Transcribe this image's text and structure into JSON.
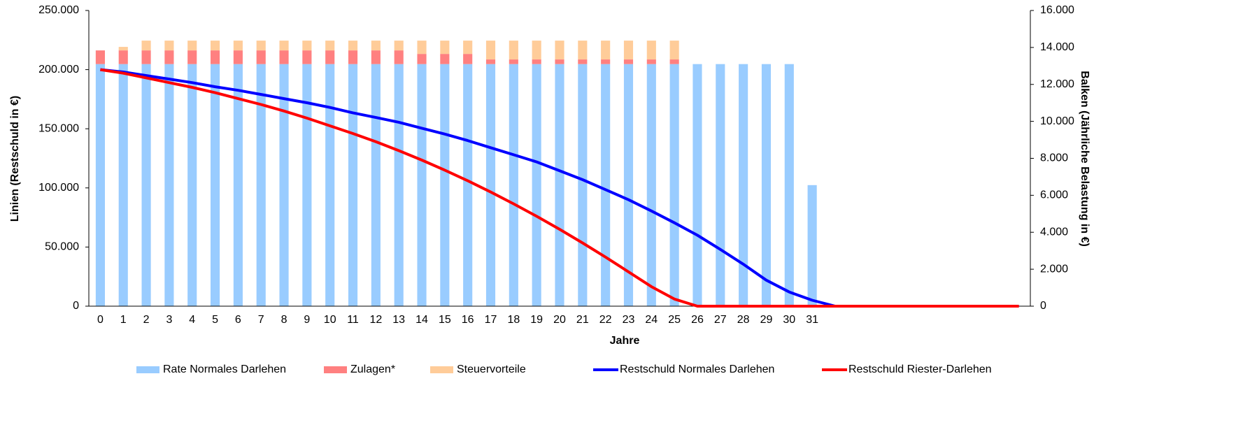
{
  "chart_data": {
    "type": "combo",
    "xlabel": "Jahre",
    "ylabel": "Linien  (Restschuld in €)",
    "y2label": "Balken  (Jährliche Belastung in €)",
    "categories": [
      "0",
      "1",
      "2",
      "3",
      "4",
      "5",
      "6",
      "7",
      "8",
      "9",
      "10",
      "11",
      "12",
      "13",
      "14",
      "15",
      "16",
      "17",
      "18",
      "19",
      "20",
      "21",
      "22",
      "23",
      "24",
      "25",
      "26",
      "27",
      "28",
      "29",
      "30",
      "31",
      null,
      null,
      null,
      null,
      null,
      null,
      null,
      null,
      null
    ],
    "ylim": [
      0,
      250000
    ],
    "yticks": [
      0,
      {
        "value": 50000,
        "label": "50.000"
      },
      {
        "value": 100000,
        "label": "100.000"
      },
      {
        "value": 150000,
        "label": "150.000"
      },
      {
        "value": 200000,
        "label": "200.000"
      },
      {
        "value": 250000,
        "label": "250.000"
      }
    ],
    "y2lim": [
      0,
      16000
    ],
    "y2ticks": [
      0,
      {
        "value": 2000,
        "label": "2.000"
      },
      {
        "value": 4000,
        "label": "4.000"
      },
      {
        "value": 6000,
        "label": "6.000"
      },
      {
        "value": 8000,
        "label": "8.000"
      },
      {
        "value": 10000,
        "label": "10.000"
      },
      {
        "value": 12000,
        "label": "12.000"
      },
      {
        "value": 14000,
        "label": "14.000"
      },
      {
        "value": 16000,
        "label": "16.000"
      }
    ],
    "legend": "bottom",
    "series": [
      {
        "name": "Rate Normales Darlehen",
        "type": "bar",
        "axis": "y2",
        "color": "#99ccff",
        "values": [
          13100,
          13100,
          13100,
          13100,
          13100,
          13100,
          13100,
          13100,
          13100,
          13100,
          13100,
          13100,
          13100,
          13100,
          13100,
          13100,
          13100,
          13100,
          13100,
          13100,
          13100,
          13100,
          13100,
          13100,
          13100,
          13100,
          13100,
          13100,
          13100,
          13100,
          13100,
          6550,
          null,
          null,
          null,
          null,
          null,
          null,
          null,
          null,
          null
        ]
      },
      {
        "name": "Zulagen*",
        "type": "bar",
        "axis": "y2",
        "color": "#ff8080",
        "values": [
          740,
          740,
          740,
          740,
          740,
          740,
          740,
          740,
          740,
          740,
          740,
          740,
          740,
          740,
          550,
          550,
          550,
          250,
          250,
          250,
          250,
          250,
          250,
          250,
          250,
          250,
          null,
          null,
          null,
          null,
          null,
          null,
          null,
          null,
          null,
          null,
          null,
          null,
          null,
          null,
          null
        ]
      },
      {
        "name": "Steuervorteile",
        "type": "bar",
        "axis": "y2",
        "color": "#ffcc99",
        "values": [
          null,
          190,
          530,
          530,
          530,
          530,
          530,
          530,
          530,
          530,
          530,
          530,
          530,
          530,
          720,
          720,
          720,
          1020,
          1020,
          1020,
          1020,
          1020,
          1020,
          1020,
          1020,
          1020,
          null,
          null,
          null,
          null,
          null,
          null,
          null,
          null,
          null,
          null,
          null,
          null,
          null,
          null,
          null
        ]
      },
      {
        "name": "Restschuld Normales Darlehen",
        "type": "line",
        "color": "#0000ff",
        "values": [
          200000,
          198000,
          195000,
          192000,
          189000,
          185500,
          182500,
          179000,
          175500,
          172000,
          168000,
          163500,
          159500,
          155500,
          150500,
          145500,
          140000,
          134000,
          128000,
          122000,
          114500,
          107000,
          98500,
          90000,
          80500,
          70500,
          60000,
          48000,
          35500,
          22000,
          12000,
          5000,
          0,
          0,
          0,
          0,
          0,
          0,
          0,
          0,
          0
        ]
      },
      {
        "name": "Restschuld Riester-Darlehen",
        "type": "line",
        "color": "#ff0000",
        "values": [
          200000,
          197000,
          193000,
          189000,
          185000,
          180500,
          175500,
          170500,
          165000,
          159000,
          152500,
          146000,
          139000,
          131500,
          123500,
          115000,
          106000,
          96500,
          86500,
          76000,
          65000,
          53500,
          41500,
          29000,
          16500,
          6000,
          0,
          0,
          0,
          0,
          0,
          0,
          0,
          0,
          0,
          0,
          0,
          0,
          0,
          0,
          0
        ]
      }
    ]
  }
}
